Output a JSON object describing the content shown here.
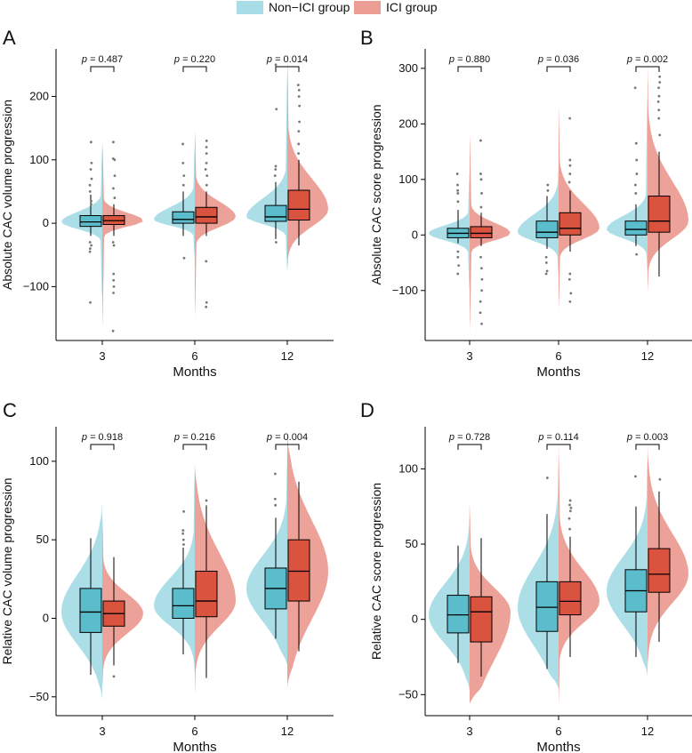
{
  "legend": {
    "items": [
      {
        "label": "Non−ICI group",
        "color": "#a8dce6"
      },
      {
        "label": "ICI group",
        "color": "#ec9d94"
      }
    ]
  },
  "colors": {
    "non_ici_violin": "#a8dce6",
    "ici_violin": "#ec9d94",
    "non_ici_box": "#5bbccc",
    "ici_box": "#d9533f",
    "outlier": "#777777"
  },
  "chart_data": [
    {
      "panel": "A",
      "type": "split-violin-box",
      "ylabel": "Absolute CAC volume progression",
      "xlabel": "Months",
      "categories": [
        "3",
        "6",
        "12"
      ],
      "ylim": [
        -185,
        275
      ],
      "yticks": [
        -100,
        0,
        100,
        200
      ],
      "p_values": [
        "0.487",
        "0.220",
        "0.014"
      ],
      "groups": {
        "non_ici": [
          {
            "min": -20,
            "q1": -5,
            "median": 2,
            "q3": 12,
            "max": 45,
            "range": [
              -125,
              130
            ],
            "outliers": [
              -125,
              -45,
              -40,
              -35,
              -30,
              30,
              35,
              50,
              60,
              70,
              85,
              95,
              128
            ]
          },
          {
            "min": -20,
            "q1": 0,
            "median": 6,
            "q3": 18,
            "max": 50,
            "range": [
              -60,
              130
            ],
            "outliers": [
              -55,
              60,
              75,
              95,
              125
            ]
          },
          {
            "min": -25,
            "q1": 3,
            "median": 10,
            "q3": 28,
            "max": 65,
            "range": [
              -80,
              250
            ],
            "outliers": [
              -30,
              75,
              85,
              90,
              180,
              250
            ]
          }
        ],
        "ici": [
          {
            "min": -20,
            "q1": -2,
            "median": 4,
            "q3": 12,
            "max": 30,
            "range": [
              -170,
              135
            ],
            "outliers": [
              -170,
              -110,
              -100,
              -90,
              -80,
              -35,
              -30,
              40,
              55,
              75,
              100,
              102,
              128
            ]
          },
          {
            "min": -20,
            "q1": 0,
            "median": 10,
            "q3": 25,
            "max": 50,
            "range": [
              -155,
              155
            ],
            "outliers": [
              -132,
              -125,
              -60,
              60,
              75,
              85,
              95,
              110,
              120,
              130
            ]
          },
          {
            "min": -35,
            "q1": 5,
            "median": 22,
            "q3": 52,
            "max": 100,
            "range": [
              -80,
              275
            ],
            "outliers": [
              110,
              125,
              145,
              160,
              185,
              200,
              210,
              218
            ]
          }
        ]
      }
    },
    {
      "panel": "B",
      "type": "split-violin-box",
      "ylabel": "Absolute CAC score progression",
      "xlabel": "Months",
      "categories": [
        "3",
        "6",
        "12"
      ],
      "ylim": [
        -190,
        335
      ],
      "yticks": [
        -100,
        0,
        100,
        200,
        300
      ],
      "p_values": [
        "0.880",
        "0.036",
        "0.002"
      ],
      "groups": {
        "non_ici": [
          {
            "min": -15,
            "q1": -5,
            "median": 3,
            "q3": 12,
            "max": 45,
            "range": [
              -110,
              120
            ],
            "outliers": [
              -70,
              -55,
              -40,
              -30,
              60,
              75,
              80,
              90,
              110
            ]
          },
          {
            "min": -25,
            "q1": -5,
            "median": 5,
            "q3": 25,
            "max": 70,
            "range": [
              -80,
              125
            ],
            "outliers": [
              -70,
              -65,
              -50,
              -40,
              80,
              90
            ]
          },
          {
            "min": -20,
            "q1": 0,
            "median": 10,
            "q3": 25,
            "max": 55,
            "range": [
              -70,
              270
            ],
            "outliers": [
              -35,
              75,
              90,
              110,
              135,
              165,
              265
            ]
          }
        ],
        "ici": [
          {
            "min": -20,
            "q1": -5,
            "median": 3,
            "q3": 15,
            "max": 40,
            "range": [
              -180,
              190
            ],
            "outliers": [
              -160,
              -140,
              -120,
              -100,
              -80,
              -60,
              -40,
              50,
              75,
              100,
              110,
              170
            ]
          },
          {
            "min": -30,
            "q1": 0,
            "median": 12,
            "q3": 40,
            "max": 80,
            "range": [
              -140,
              240
            ],
            "outliers": [
              -120,
              -105,
              -80,
              -70,
              95,
              110,
              125,
              135,
              210
            ]
          },
          {
            "min": -75,
            "q1": 5,
            "median": 25,
            "q3": 70,
            "max": 150,
            "range": [
              -110,
              320
            ],
            "outliers": [
              180,
              210,
              225,
              240,
              250,
              265,
              275,
              285
            ]
          }
        ]
      }
    },
    {
      "panel": "C",
      "type": "split-violin-box",
      "ylabel": "Relative CAC volume progression",
      "xlabel": "Months",
      "categories": [
        "3",
        "6",
        "12"
      ],
      "ylim": [
        -62,
        122
      ],
      "yticks": [
        -50,
        0,
        50,
        100
      ],
      "p_values": [
        "0.918",
        "0.216",
        "0.004"
      ],
      "groups": {
        "non_ici": [
          {
            "min": -36,
            "q1": -9,
            "median": 4,
            "q3": 19,
            "max": 51,
            "range": [
              -52,
              74
            ],
            "outliers": []
          },
          {
            "min": -23,
            "q1": 0,
            "median": 8,
            "q3": 19,
            "max": 45,
            "range": [
              -38,
              101
            ],
            "outliers": [
              47,
              50,
              54,
              56,
              68
            ]
          },
          {
            "min": -13,
            "q1": 6,
            "median": 19,
            "q3": 32,
            "max": 64,
            "range": [
              -30,
              110
            ],
            "outliers": [
              72,
              76,
              92
            ]
          }
        ],
        "ici": [
          {
            "min": -30,
            "q1": -5,
            "median": 3,
            "q3": 11,
            "max": 39,
            "range": [
              -47,
              67
            ],
            "outliers": [
              -37
            ]
          },
          {
            "min": -38,
            "q1": 1,
            "median": 11,
            "q3": 30,
            "max": 72,
            "range": [
              -52,
              100
            ],
            "outliers": [
              75
            ]
          },
          {
            "min": -21,
            "q1": 11,
            "median": 30,
            "q3": 50,
            "max": 87,
            "range": [
              -44,
              118
            ],
            "outliers": []
          }
        ]
      }
    },
    {
      "panel": "D",
      "type": "split-violin-box",
      "ylabel": "Relative CAC score progression",
      "xlabel": "Months",
      "categories": [
        "3",
        "6",
        "12"
      ],
      "ylim": [
        -64,
        128
      ],
      "yticks": [
        -50,
        0,
        50,
        100
      ],
      "p_values": [
        "0.728",
        "0.114",
        "0.003"
      ],
      "groups": {
        "non_ici": [
          {
            "min": -29,
            "q1": -9,
            "median": 3,
            "q3": 16,
            "max": 49,
            "range": [
              -48,
              80
            ],
            "outliers": []
          },
          {
            "min": -33,
            "q1": -8,
            "median": 8,
            "q3": 25,
            "max": 70,
            "range": [
              -46,
              118
            ],
            "outliers": [
              94
            ]
          },
          {
            "min": -25,
            "q1": 5,
            "median": 19,
            "q3": 33,
            "max": 75,
            "range": [
              -38,
              115
            ],
            "outliers": [
              95
            ]
          }
        ],
        "ici": [
          {
            "min": -38,
            "q1": -15,
            "median": 5,
            "q3": 15,
            "max": 54,
            "range": [
              -56,
              79
            ],
            "outliers": []
          },
          {
            "min": -25,
            "q1": 3,
            "median": 12,
            "q3": 25,
            "max": 55,
            "range": [
              -60,
              120
            ],
            "outliers": [
              60,
              67,
              72,
              74,
              76,
              79
            ]
          },
          {
            "min": -15,
            "q1": 18,
            "median": 30,
            "q3": 47,
            "max": 85,
            "range": [
              -36,
              118
            ],
            "outliers": [
              93
            ]
          }
        ]
      }
    }
  ]
}
